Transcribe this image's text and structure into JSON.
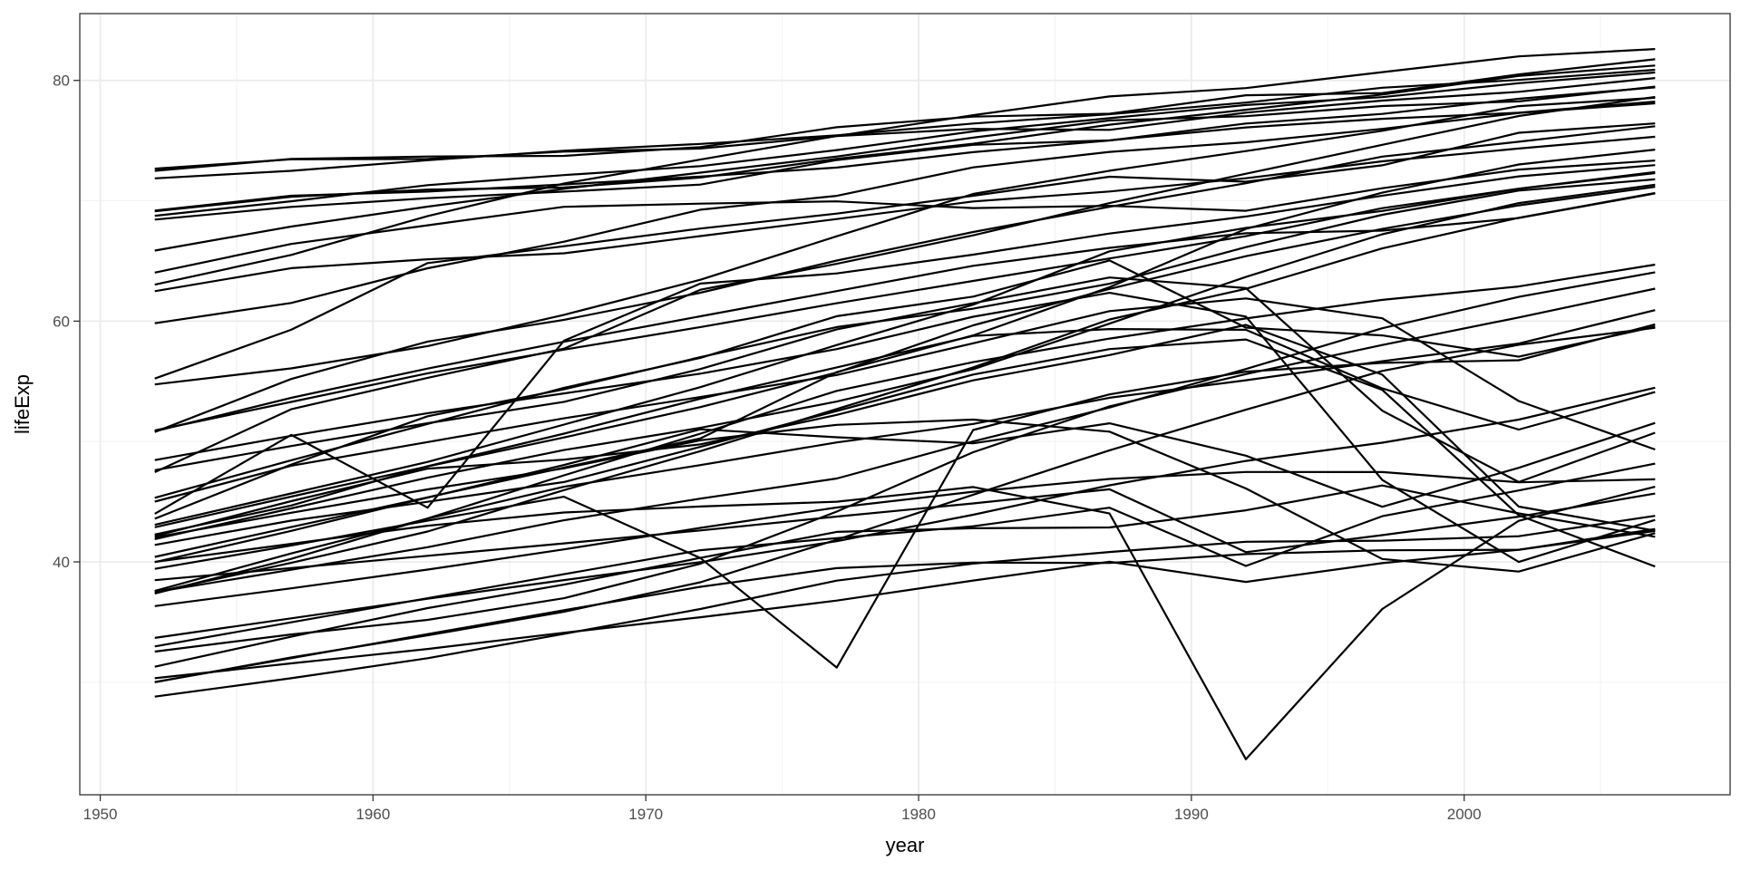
{
  "chart_data": {
    "type": "line",
    "title": "",
    "xlabel": "year",
    "ylabel": "lifeExp",
    "xlim": [
      1949.25,
      2009.75
    ],
    "ylim": [
      20.65,
      85.55
    ],
    "x_ticks": [
      1950,
      1960,
      1970,
      1980,
      1990,
      2000
    ],
    "y_ticks": [
      40,
      60,
      80
    ],
    "grid": true,
    "legend": "none",
    "line_color": "#000000",
    "x": [
      1952,
      1957,
      1962,
      1967,
      1972,
      1977,
      1982,
      1987,
      1992,
      1997,
      2002,
      2007
    ],
    "series": [
      {
        "values": [
          28.801,
          30.332,
          31.997,
          34.02,
          36.088,
          38.438,
          39.854,
          40.822,
          41.674,
          41.763,
          42.129,
          43.828
        ]
      },
      {
        "values": [
          55.23,
          59.28,
          64.82,
          66.22,
          67.69,
          68.93,
          70.42,
          72,
          71.581,
          72.95,
          75.651,
          76.423
        ]
      },
      {
        "values": [
          43.077,
          45.685,
          48.303,
          51.407,
          54.518,
          58.014,
          61.368,
          65.799,
          67.744,
          69.152,
          70.994,
          72.301
        ]
      },
      {
        "values": [
          30.015,
          31.999,
          34,
          35.985,
          37.928,
          39.483,
          39.942,
          39.906,
          40.647,
          40.963,
          41.003,
          42.731
        ]
      },
      {
        "values": [
          62.485,
          64.399,
          65.142,
          65.634,
          67.065,
          68.481,
          69.942,
          70.774,
          71.868,
          73.275,
          74.34,
          75.32
        ]
      },
      {
        "values": [
          69.12,
          70.33,
          70.93,
          71.1,
          71.93,
          73.49,
          74.74,
          76.32,
          77.56,
          78.83,
          80.37,
          81.235
        ]
      },
      {
        "values": [
          37.484,
          39.348,
          41.216,
          43.453,
          45.252,
          46.923,
          50.009,
          52.819,
          56.018,
          59.412,
          62.013,
          64.062
        ]
      },
      {
        "values": [
          47.622,
          49.618,
          51.52,
          53.298,
          56.024,
          59.319,
          61.484,
          63.622,
          62.745,
          52.556,
          46.634,
          50.728
        ]
      },
      {
        "values": [
          50.917,
          53.285,
          55.665,
          57.632,
          59.504,
          61.489,
          63.336,
          65.205,
          67.057,
          69.388,
          71.006,
          72.39
        ]
      },
      {
        "values": [
          39.417,
          41.366,
          43.415,
          45.415,
          40.317,
          31.22,
          50.957,
          53.914,
          55.803,
          56.534,
          56.752,
          59.723
        ]
      },
      {
        "values": [
          68.75,
          69.96,
          71.3,
          72.13,
          72.88,
          74.21,
          75.76,
          76.86,
          77.95,
          78.61,
          79.77,
          80.653
        ]
      },
      {
        "values": [
          44,
          50.549,
          44.501,
          58.381,
          63.119,
          63.967,
          65.525,
          67.274,
          68.69,
          70.426,
          72.028,
          72.961
        ]
      },
      {
        "values": [
          72.49,
          73.47,
          73.68,
          73.73,
          74.46,
          76.11,
          76.99,
          77.23,
          78.77,
          78.95,
          80.5,
          81.757
        ]
      },
      {
        "values": [
          37.373,
          40.249,
          43.605,
          47.193,
          50.651,
          54.208,
          56.596,
          58.553,
          60.223,
          61.765,
          62.879,
          64.698
        ]
      },
      {
        "values": [
          63.03,
          65.5,
          68.73,
          71.43,
          73.42,
          75.38,
          77.11,
          78.67,
          79.36,
          80.69,
          82,
          82.603
        ]
      },
      {
        "values": [
          72.67,
          73.44,
          73.47,
          74.08,
          74.34,
          75.37,
          75.97,
          75.89,
          77.32,
          78.32,
          79.05,
          80.196
        ]
      },
      {
        "values": [
          40,
          41.5,
          43,
          44.1,
          44.6,
          45,
          46.218,
          44.02,
          23.599,
          36.087,
          43.413,
          46.242
        ]
      },
      {
        "values": [
          30.331,
          31.57,
          32.767,
          34.113,
          35.4,
          36.788,
          38.445,
          40.006,
          38.333,
          39.897,
          41.012,
          42.568
        ]
      },
      {
        "values": [
          45.009,
          47.985,
          49.951,
          51.927,
          53.696,
          55.527,
          58.161,
          60.834,
          61.888,
          60.236,
          53.365,
          49.339
        ]
      },
      {
        "values": [
          41.407,
          43.424,
          44.992,
          46.633,
          49.552,
          52.537,
          55.561,
          57.678,
          58.474,
          54.289,
          43.869,
          39.613
        ]
      },
      {
        "values": [
          48.451,
          50.469,
          52.358,
          53.995,
          55.635,
          57.674,
          60.363,
          62.351,
          60.377,
          46.809,
          39.989,
          43.487
        ]
      },
      {
        "values": [
          42.038,
          44.077,
          46.023,
          47.768,
          50.107,
          51.386,
          51.821,
          50.821,
          46.1,
          40.238,
          39.193,
          42.384
        ]
      },
      {
        "values": [
          68.44,
          69.49,
          70.21,
          70.76,
          71.34,
          73.38,
          74.65,
          75.02,
          76.09,
          76.81,
          77.31,
          78.242
        ]
      },
      {
        "values": [
          69.18,
          70.42,
          70.76,
          71.36,
          72.01,
          72.76,
          74.04,
          75.007,
          76.42,
          77.218,
          78.471,
          79.425
        ]
      },
      {
        "values": [
          50.789,
          55.19,
          58.299,
          60.11,
          62.361,
          65.032,
          67.405,
          69.498,
          71.455,
          73.67,
          74.902,
          76.195
        ]
      },
      {
        "values": [
          36.324,
          37.802,
          39.36,
          41.04,
          42.821,
          44.514,
          45.826,
          46.886,
          47.472,
          47.464,
          46.608,
          46.859
        ]
      },
      {
        "values": [
          45.32,
          48.437,
          51.457,
          54.459,
          56.95,
          60.413,
          62.038,
          65.044,
          59.461,
          58.811,
          57.046,
          59.545
        ]
      },
      {
        "values": [
          33.685,
          35.307,
          36.936,
          38.487,
          39.977,
          41.714,
          43.916,
          46.364,
          48.388,
          49.903,
          51.818,
          54.467
        ]
      },
      {
        "values": [
          30,
          32.065,
          33.896,
          35.857,
          38.308,
          41.842,
          45.58,
          49.265,
          52.644,
          55.861,
          58.041,
          59.448
        ]
      },
      {
        "values": [
          37.468,
          39.918,
          42.518,
          45.964,
          49.203,
          52.702,
          56.159,
          60.137,
          62.681,
          66.041,
          68.588,
          70.65
        ]
      },
      {
        "values": [
          43.585,
          48.079,
          52.098,
          54.336,
          57.005,
          59.507,
          61.036,
          63.108,
          66.146,
          68.835,
          70.845,
          71.777
        ]
      },
      {
        "values": [
          41.893,
          44.444,
          46.992,
          49.293,
          51.137,
          53.319,
          56.006,
          59.797,
          63.674,
          67.217,
          69.806,
          71.338
        ]
      },
      {
        "values": [
          47.453,
          52.681,
          55.292,
          57.716,
          62.612,
          64.766,
          67.123,
          69.81,
          72.244,
          74.647,
          77.045,
          78.623
        ]
      },
      {
        "values": [
          38.48,
          39.486,
          40.502,
          41.536,
          42.614,
          43.764,
          44.852,
          46.027,
          40.802,
          42.221,
          43.753,
          45.678
        ]
      },
      {
        "values": [
          39.978,
          42.571,
          45.344,
          48.051,
          51.016,
          50.35,
          49.849,
          51.509,
          48.825,
          44.578,
          47.813,
          51.542
        ]
      },
      {
        "values": [
          32.978,
          34.977,
          36.981,
          38.977,
          40.973,
          41.974,
          42.955,
          44.501,
          39.658,
          43.795,
          45.936,
          48.159
        ]
      },
      {
        "values": [
          42.138,
          45.047,
          47.747,
          48.492,
          49.767,
          52.208,
          55.078,
          57.18,
          59.685,
          55.558,
          44.593,
          42.592
        ]
      },
      {
        "values": [
          31.286,
          33.779,
          36.161,
          38.113,
          40.328,
          42.495,
          42.795,
          42.861,
          44.284,
          46.344,
          44.026,
          42.082
        ]
      },
      {
        "values": [
          71.86,
          72.49,
          73.37,
          74.16,
          74.72,
          75.44,
          76.42,
          77.19,
          78.16,
          79.39,
          80.04,
          80.884
        ]
      },
      {
        "values": [
          54.745,
          56.074,
          57.924,
          60.523,
          63.441,
          67.052,
          70.565,
          72.492,
          74.126,
          75.816,
          77.86,
          78.553
        ]
      },
      {
        "values": [
          50.848,
          53.63,
          56.061,
          58.285,
          60.405,
          62.494,
          64.597,
          66.084,
          67.298,
          67.521,
          68.564,
          70.616
        ]
      },
      {
        "values": [
          40.412,
          42.887,
          45.363,
          47.838,
          50.254,
          55.764,
          58.816,
          62.82,
          67.662,
          70.672,
          73.017,
          74.249
        ]
      },
      {
        "values": [
          37.579,
          40.696,
          43.59,
          46.243,
          48.042,
          49.923,
          51.461,
          53.636,
          55.089,
          56.671,
          58.137,
          60.916
        ]
      },
      {
        "values": [
          42.27,
          44.686,
          47.949,
          50.654,
          53.559,
          56.155,
          58.766,
          59.339,
          59.285,
          54.407,
          50.992,
          54.11
        ]
      },
      {
        "values": [
          32.548,
          33.97,
          35.18,
          36.984,
          39.848,
          44.175,
          49.113,
          52.922,
          55.599,
          58.02,
          60.308,
          62.698
        ]
      },
      {
        "values": [
          65.86,
          67.86,
          69.51,
          71,
          72.34,
          73.68,
          75.24,
          76.67,
          77.03,
          77.869,
          78.256,
          79.483
        ]
      },
      {
        "values": [
          59.82,
          61.51,
          64.39,
          66.6,
          69.26,
          70.41,
          72.77,
          74.06,
          74.86,
          75.97,
          77.29,
          78.098
        ]
      },
      {
        "values": [
          64.03,
          66.41,
          67.96,
          69.5,
          69.76,
          69.95,
          69.39,
          69.58,
          69.17,
          71.04,
          72.59,
          73.338
        ]
      },
      {
        "values": [
          42.873,
          45.423,
          47.924,
          50.335,
          52.862,
          55.73,
          59.65,
          62.677,
          65.393,
          67.66,
          69.615,
          71.164
        ]
      }
    ]
  }
}
